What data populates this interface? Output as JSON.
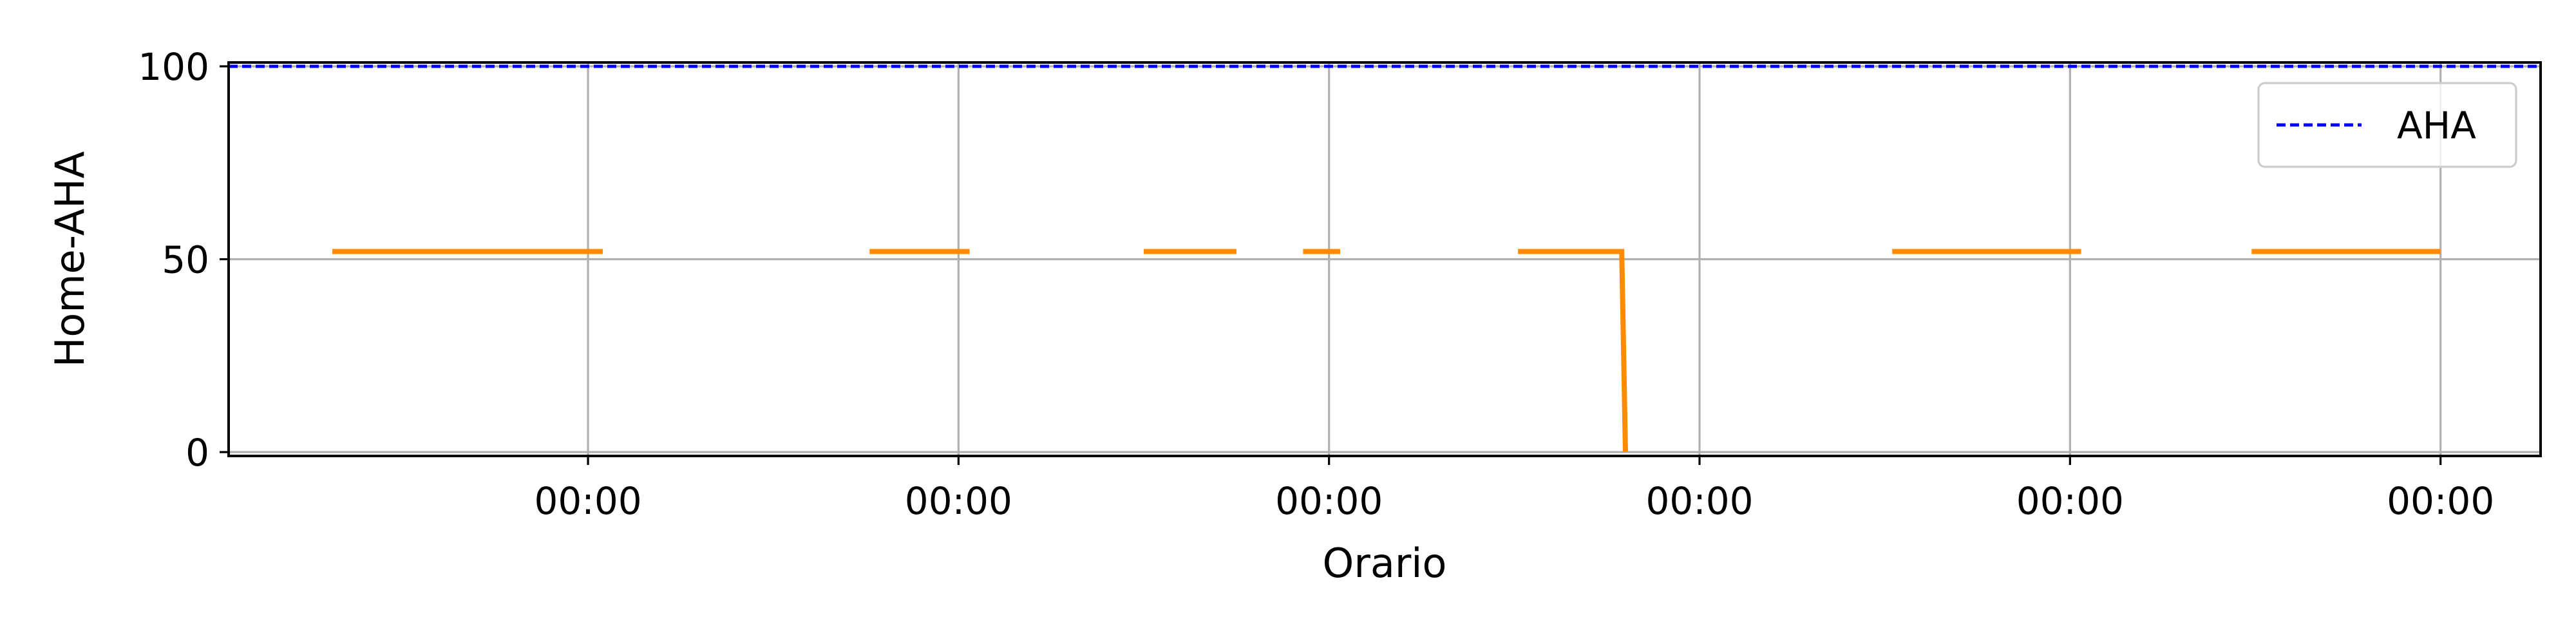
{
  "chart_data": {
    "type": "line",
    "xlabel": "Orario",
    "ylabel": "Home-AHA",
    "ylim": [
      -1,
      101
    ],
    "yticks": [
      0,
      50,
      100
    ],
    "xlim": [
      -0.97,
      5.27
    ],
    "xticks": [
      0,
      1,
      2,
      3,
      4,
      5
    ],
    "xtick_labels": [
      "00:00",
      "00:00",
      "00:00",
      "00:00",
      "00:00",
      "00:00"
    ],
    "grid": true,
    "legend_position": "top-right",
    "series": [
      {
        "name": "",
        "color": "#ff8c00",
        "segments": [
          [
            [
              -0.69,
              52
            ],
            [
              0.04,
              52
            ]
          ],
          [
            [
              0.76,
              52
            ],
            [
              1.03,
              52
            ]
          ],
          [
            [
              1.5,
              52
            ],
            [
              1.75,
              52
            ]
          ],
          [
            [
              1.93,
              52
            ],
            [
              2.03,
              52
            ]
          ],
          [
            [
              2.51,
              52
            ],
            [
              2.79,
              52
            ],
            [
              2.8,
              0
            ]
          ],
          [
            [
              3.52,
              52
            ],
            [
              4.03,
              52
            ]
          ],
          [
            [
              4.49,
              52
            ],
            [
              5.0,
              52
            ]
          ]
        ]
      },
      {
        "name": "AHA",
        "color": "#0000ff",
        "style": "dashed",
        "segments": [
          [
            [
              -0.97,
              100
            ],
            [
              5.27,
              100
            ]
          ]
        ]
      }
    ]
  }
}
